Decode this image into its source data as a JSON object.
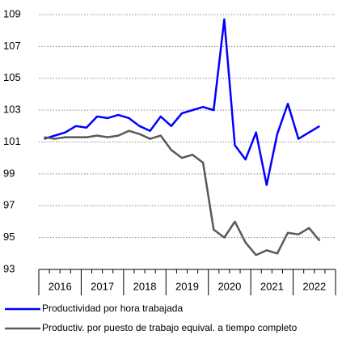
{
  "chart_data": {
    "type": "line",
    "x_groups": [
      "2016",
      "2017",
      "2018",
      "2019",
      "2020",
      "2021",
      "2022"
    ],
    "categories": [
      null,
      null,
      null,
      null,
      null,
      null,
      null,
      null,
      null,
      null,
      null,
      null,
      null,
      null,
      null,
      null,
      null,
      null,
      null,
      null,
      null,
      null,
      null,
      null,
      null,
      null,
      null
    ],
    "series": [
      {
        "name": "Productividad por hora trabajada",
        "color": "#0000ff",
        "values": [
          101.2,
          101.4,
          101.6,
          102.0,
          101.9,
          102.6,
          102.5,
          102.7,
          102.5,
          102.0,
          101.7,
          102.6,
          102.0,
          102.8,
          103.0,
          103.2,
          103.0,
          108.7,
          100.8,
          99.9,
          101.6,
          98.3,
          101.5,
          103.4,
          101.2,
          101.6,
          102.0
        ]
      },
      {
        "name": "Productiv. por puesto de trabajo equival. a tiempo completo",
        "color": "#595959",
        "values": [
          101.3,
          101.2,
          101.3,
          101.3,
          101.3,
          101.4,
          101.3,
          101.4,
          101.7,
          101.5,
          101.2,
          101.4,
          100.5,
          100.0,
          100.2,
          99.7,
          95.5,
          95.0,
          96.0,
          94.7,
          93.9,
          94.2,
          94.0,
          95.3,
          95.2,
          95.6,
          94.8
        ]
      }
    ],
    "ylim": [
      93,
      109
    ],
    "yticks": [
      93,
      95,
      97,
      99,
      101,
      103,
      105,
      107,
      109
    ],
    "grid": true
  }
}
